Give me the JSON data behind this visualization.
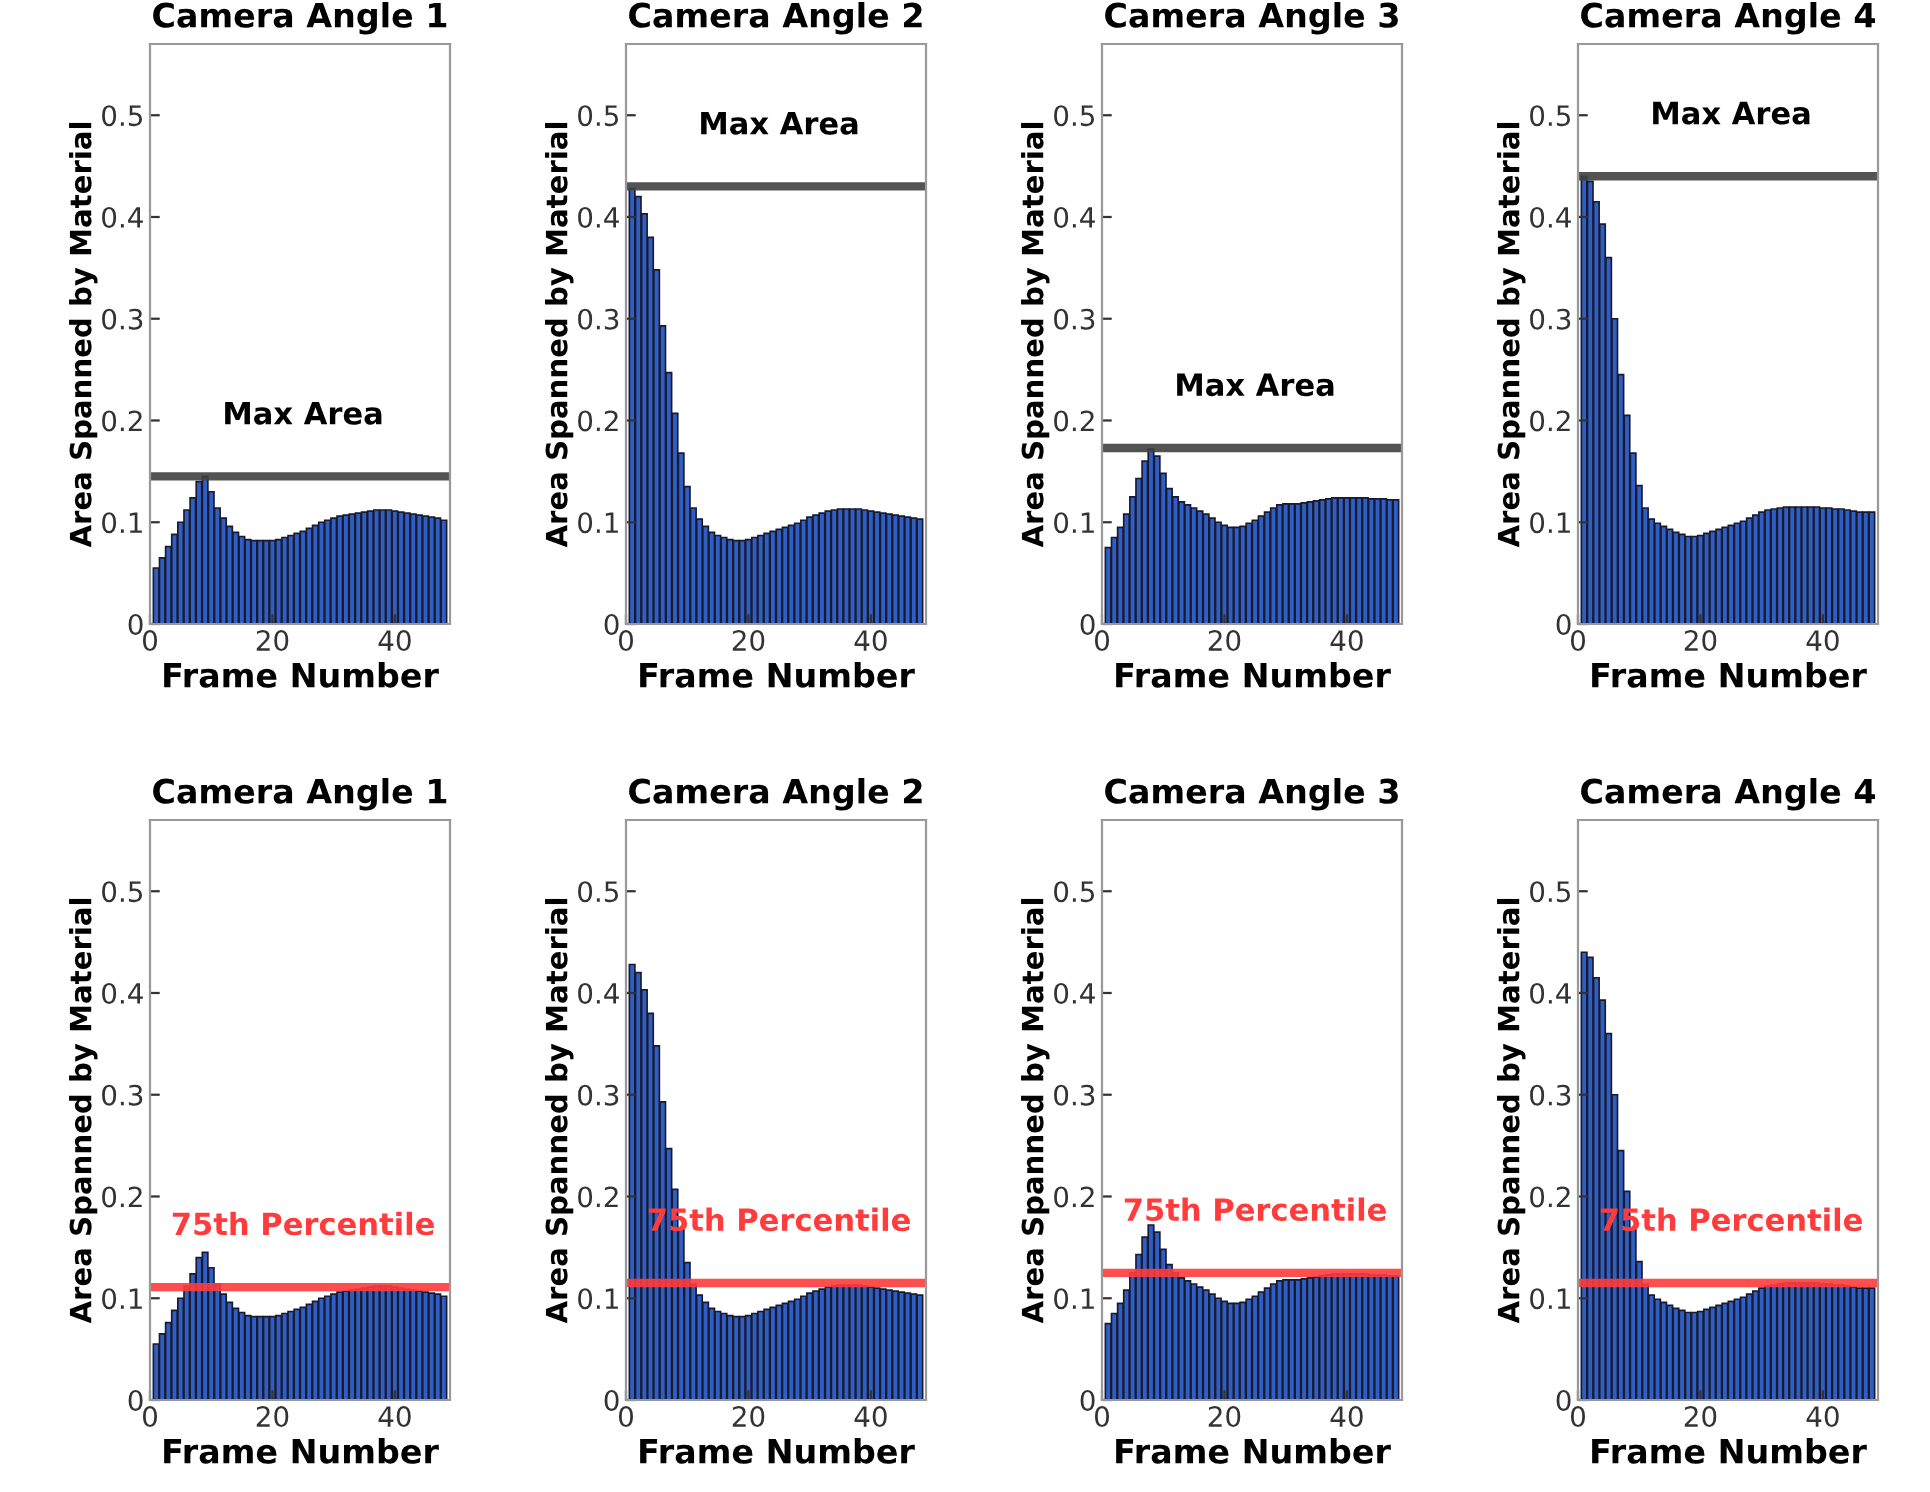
{
  "chart_data": [
    {
      "type": "bar",
      "title": "Camera Angle 1",
      "xlabel": "Frame Number",
      "ylabel": "Area Spanned by Material",
      "color": "#2f5fc4",
      "xlim": [
        0,
        49
      ],
      "ylim": [
        0,
        0.57
      ],
      "xticks": [
        0,
        20,
        40
      ],
      "yticks": [
        0,
        0.1,
        0.2,
        0.3,
        0.4,
        0.5
      ],
      "grid": false,
      "x": [
        1,
        2,
        3,
        4,
        5,
        6,
        7,
        8,
        9,
        10,
        11,
        12,
        13,
        14,
        15,
        16,
        17,
        18,
        19,
        20,
        21,
        22,
        23,
        24,
        25,
        26,
        27,
        28,
        29,
        30,
        31,
        32,
        33,
        34,
        35,
        36,
        37,
        38,
        39,
        40,
        41,
        42,
        43,
        44,
        45,
        46,
        47,
        48
      ],
      "values": [
        0.055,
        0.065,
        0.076,
        0.088,
        0.1,
        0.112,
        0.124,
        0.14,
        0.145,
        0.13,
        0.114,
        0.104,
        0.096,
        0.09,
        0.086,
        0.083,
        0.082,
        0.082,
        0.082,
        0.082,
        0.083,
        0.085,
        0.087,
        0.089,
        0.091,
        0.094,
        0.097,
        0.1,
        0.102,
        0.104,
        0.106,
        0.107,
        0.108,
        0.109,
        0.11,
        0.111,
        0.112,
        0.112,
        0.112,
        0.111,
        0.11,
        0.109,
        0.108,
        0.107,
        0.106,
        0.105,
        0.104,
        0.102
      ],
      "ref_lines": [
        {
          "axis": "y",
          "value": 0.145,
          "label": "Max Area",
          "color": "#404040"
        }
      ]
    },
    {
      "type": "bar",
      "title": "Camera Angle 2",
      "xlabel": "Frame Number",
      "ylabel": "Area Spanned by Material",
      "color": "#2f5fc4",
      "xlim": [
        0,
        49
      ],
      "ylim": [
        0,
        0.57
      ],
      "xticks": [
        0,
        20,
        40
      ],
      "yticks": [
        0,
        0.1,
        0.2,
        0.3,
        0.4,
        0.5
      ],
      "grid": false,
      "x": [
        1,
        2,
        3,
        4,
        5,
        6,
        7,
        8,
        9,
        10,
        11,
        12,
        13,
        14,
        15,
        16,
        17,
        18,
        19,
        20,
        21,
        22,
        23,
        24,
        25,
        26,
        27,
        28,
        29,
        30,
        31,
        32,
        33,
        34,
        35,
        36,
        37,
        38,
        39,
        40,
        41,
        42,
        43,
        44,
        45,
        46,
        47,
        48
      ],
      "values": [
        0.428,
        0.42,
        0.403,
        0.38,
        0.348,
        0.293,
        0.247,
        0.207,
        0.168,
        0.135,
        0.114,
        0.103,
        0.096,
        0.09,
        0.087,
        0.085,
        0.083,
        0.082,
        0.082,
        0.083,
        0.085,
        0.087,
        0.089,
        0.091,
        0.093,
        0.095,
        0.097,
        0.099,
        0.102,
        0.105,
        0.107,
        0.109,
        0.111,
        0.112,
        0.113,
        0.113,
        0.113,
        0.113,
        0.112,
        0.111,
        0.11,
        0.109,
        0.108,
        0.107,
        0.106,
        0.105,
        0.104,
        0.103
      ],
      "ref_lines": [
        {
          "axis": "y",
          "value": 0.43,
          "label": "Max Area",
          "color": "#404040"
        }
      ]
    },
    {
      "type": "bar",
      "title": "Camera Angle 3",
      "xlabel": "Frame Number",
      "ylabel": "Area Spanned by Material",
      "color": "#2f5fc4",
      "xlim": [
        0,
        49
      ],
      "ylim": [
        0,
        0.57
      ],
      "xticks": [
        0,
        20,
        40
      ],
      "yticks": [
        0,
        0.1,
        0.2,
        0.3,
        0.4,
        0.5
      ],
      "grid": false,
      "x": [
        1,
        2,
        3,
        4,
        5,
        6,
        7,
        8,
        9,
        10,
        11,
        12,
        13,
        14,
        15,
        16,
        17,
        18,
        19,
        20,
        21,
        22,
        23,
        24,
        25,
        26,
        27,
        28,
        29,
        30,
        31,
        32,
        33,
        34,
        35,
        36,
        37,
        38,
        39,
        40,
        41,
        42,
        43,
        44,
        45,
        46,
        47,
        48
      ],
      "values": [
        0.075,
        0.085,
        0.095,
        0.108,
        0.125,
        0.143,
        0.16,
        0.172,
        0.165,
        0.148,
        0.133,
        0.125,
        0.12,
        0.117,
        0.114,
        0.111,
        0.108,
        0.104,
        0.1,
        0.097,
        0.095,
        0.095,
        0.096,
        0.099,
        0.102,
        0.106,
        0.11,
        0.114,
        0.117,
        0.118,
        0.118,
        0.118,
        0.119,
        0.12,
        0.121,
        0.122,
        0.123,
        0.124,
        0.124,
        0.124,
        0.124,
        0.124,
        0.124,
        0.123,
        0.123,
        0.123,
        0.122,
        0.122
      ],
      "ref_lines": [
        {
          "axis": "y",
          "value": 0.173,
          "label": "Max Area",
          "color": "#404040"
        }
      ]
    },
    {
      "type": "bar",
      "title": "Camera Angle 4",
      "xlabel": "Frame Number",
      "ylabel": "Area Spanned by Material",
      "color": "#2f5fc4",
      "xlim": [
        0,
        49
      ],
      "ylim": [
        0,
        0.57
      ],
      "xticks": [
        0,
        20,
        40
      ],
      "yticks": [
        0,
        0.1,
        0.2,
        0.3,
        0.4,
        0.5
      ],
      "grid": false,
      "x": [
        1,
        2,
        3,
        4,
        5,
        6,
        7,
        8,
        9,
        10,
        11,
        12,
        13,
        14,
        15,
        16,
        17,
        18,
        19,
        20,
        21,
        22,
        23,
        24,
        25,
        26,
        27,
        28,
        29,
        30,
        31,
        32,
        33,
        34,
        35,
        36,
        37,
        38,
        39,
        40,
        41,
        42,
        43,
        44,
        45,
        46,
        47,
        48
      ],
      "values": [
        0.44,
        0.435,
        0.415,
        0.393,
        0.36,
        0.3,
        0.245,
        0.205,
        0.168,
        0.136,
        0.114,
        0.103,
        0.099,
        0.096,
        0.093,
        0.09,
        0.088,
        0.086,
        0.086,
        0.087,
        0.089,
        0.091,
        0.093,
        0.095,
        0.097,
        0.099,
        0.101,
        0.104,
        0.107,
        0.11,
        0.112,
        0.113,
        0.114,
        0.115,
        0.115,
        0.115,
        0.115,
        0.115,
        0.115,
        0.114,
        0.114,
        0.113,
        0.113,
        0.112,
        0.111,
        0.11,
        0.11,
        0.11
      ],
      "ref_lines": [
        {
          "axis": "y",
          "value": 0.44,
          "label": "Max Area",
          "color": "#404040"
        }
      ]
    },
    {
      "type": "bar",
      "title": "Camera Angle 1",
      "xlabel": "Frame Number",
      "ylabel": "Area Spanned by Material",
      "color": "#2f5fc4",
      "xlim": [
        0,
        49
      ],
      "ylim": [
        0,
        0.57
      ],
      "xticks": [
        0,
        20,
        40
      ],
      "yticks": [
        0,
        0.1,
        0.2,
        0.3,
        0.4,
        0.5
      ],
      "grid": false,
      "x": [
        1,
        2,
        3,
        4,
        5,
        6,
        7,
        8,
        9,
        10,
        11,
        12,
        13,
        14,
        15,
        16,
        17,
        18,
        19,
        20,
        21,
        22,
        23,
        24,
        25,
        26,
        27,
        28,
        29,
        30,
        31,
        32,
        33,
        34,
        35,
        36,
        37,
        38,
        39,
        40,
        41,
        42,
        43,
        44,
        45,
        46,
        47,
        48
      ],
      "values": [
        0.055,
        0.065,
        0.076,
        0.088,
        0.1,
        0.112,
        0.124,
        0.14,
        0.145,
        0.13,
        0.114,
        0.104,
        0.096,
        0.09,
        0.086,
        0.083,
        0.082,
        0.082,
        0.082,
        0.082,
        0.083,
        0.085,
        0.087,
        0.089,
        0.091,
        0.094,
        0.097,
        0.1,
        0.102,
        0.104,
        0.106,
        0.107,
        0.108,
        0.109,
        0.11,
        0.111,
        0.112,
        0.112,
        0.112,
        0.111,
        0.11,
        0.109,
        0.108,
        0.107,
        0.106,
        0.105,
        0.104,
        0.102
      ],
      "ref_lines": [
        {
          "axis": "y",
          "value": 0.111,
          "label": "75th Percentile",
          "color": "#ff3b3b"
        }
      ]
    },
    {
      "type": "bar",
      "title": "Camera Angle 2",
      "xlabel": "Frame Number",
      "ylabel": "Area Spanned by Material",
      "color": "#2f5fc4",
      "xlim": [
        0,
        49
      ],
      "ylim": [
        0,
        0.57
      ],
      "xticks": [
        0,
        20,
        40
      ],
      "yticks": [
        0,
        0.1,
        0.2,
        0.3,
        0.4,
        0.5
      ],
      "grid": false,
      "x": [
        1,
        2,
        3,
        4,
        5,
        6,
        7,
        8,
        9,
        10,
        11,
        12,
        13,
        14,
        15,
        16,
        17,
        18,
        19,
        20,
        21,
        22,
        23,
        24,
        25,
        26,
        27,
        28,
        29,
        30,
        31,
        32,
        33,
        34,
        35,
        36,
        37,
        38,
        39,
        40,
        41,
        42,
        43,
        44,
        45,
        46,
        47,
        48
      ],
      "values": [
        0.428,
        0.42,
        0.403,
        0.38,
        0.348,
        0.293,
        0.247,
        0.207,
        0.168,
        0.135,
        0.114,
        0.103,
        0.096,
        0.09,
        0.087,
        0.085,
        0.083,
        0.082,
        0.082,
        0.083,
        0.085,
        0.087,
        0.089,
        0.091,
        0.093,
        0.095,
        0.097,
        0.099,
        0.102,
        0.105,
        0.107,
        0.109,
        0.111,
        0.112,
        0.113,
        0.113,
        0.113,
        0.113,
        0.112,
        0.111,
        0.11,
        0.109,
        0.108,
        0.107,
        0.106,
        0.105,
        0.104,
        0.103
      ],
      "ref_lines": [
        {
          "axis": "y",
          "value": 0.115,
          "label": "75th Percentile",
          "color": "#ff3b3b"
        }
      ]
    },
    {
      "type": "bar",
      "title": "Camera Angle 3",
      "xlabel": "Frame Number",
      "ylabel": "Area Spanned by Material",
      "color": "#2f5fc4",
      "xlim": [
        0,
        49
      ],
      "ylim": [
        0,
        0.57
      ],
      "xticks": [
        0,
        20,
        40
      ],
      "yticks": [
        0,
        0.1,
        0.2,
        0.3,
        0.4,
        0.5
      ],
      "grid": false,
      "x": [
        1,
        2,
        3,
        4,
        5,
        6,
        7,
        8,
        9,
        10,
        11,
        12,
        13,
        14,
        15,
        16,
        17,
        18,
        19,
        20,
        21,
        22,
        23,
        24,
        25,
        26,
        27,
        28,
        29,
        30,
        31,
        32,
        33,
        34,
        35,
        36,
        37,
        38,
        39,
        40,
        41,
        42,
        43,
        44,
        45,
        46,
        47,
        48
      ],
      "values": [
        0.075,
        0.085,
        0.095,
        0.108,
        0.125,
        0.143,
        0.16,
        0.172,
        0.165,
        0.148,
        0.133,
        0.125,
        0.12,
        0.117,
        0.114,
        0.111,
        0.108,
        0.104,
        0.1,
        0.097,
        0.095,
        0.095,
        0.096,
        0.099,
        0.102,
        0.106,
        0.11,
        0.114,
        0.117,
        0.118,
        0.118,
        0.118,
        0.119,
        0.12,
        0.121,
        0.122,
        0.123,
        0.124,
        0.124,
        0.124,
        0.124,
        0.124,
        0.124,
        0.123,
        0.123,
        0.123,
        0.122,
        0.122
      ],
      "ref_lines": [
        {
          "axis": "y",
          "value": 0.125,
          "label": "75th Percentile",
          "color": "#ff3b3b"
        }
      ]
    },
    {
      "type": "bar",
      "title": "Camera Angle 4",
      "xlabel": "Frame Number",
      "ylabel": "Area Spanned by Material",
      "color": "#2f5fc4",
      "xlim": [
        0,
        49
      ],
      "ylim": [
        0,
        0.57
      ],
      "xticks": [
        0,
        20,
        40
      ],
      "yticks": [
        0,
        0.1,
        0.2,
        0.3,
        0.4,
        0.5
      ],
      "grid": false,
      "x": [
        1,
        2,
        3,
        4,
        5,
        6,
        7,
        8,
        9,
        10,
        11,
        12,
        13,
        14,
        15,
        16,
        17,
        18,
        19,
        20,
        21,
        22,
        23,
        24,
        25,
        26,
        27,
        28,
        29,
        30,
        31,
        32,
        33,
        34,
        35,
        36,
        37,
        38,
        39,
        40,
        41,
        42,
        43,
        44,
        45,
        46,
        47,
        48
      ],
      "values": [
        0.44,
        0.435,
        0.415,
        0.393,
        0.36,
        0.3,
        0.245,
        0.205,
        0.168,
        0.136,
        0.114,
        0.103,
        0.099,
        0.096,
        0.093,
        0.09,
        0.088,
        0.086,
        0.086,
        0.087,
        0.089,
        0.091,
        0.093,
        0.095,
        0.097,
        0.099,
        0.101,
        0.104,
        0.107,
        0.11,
        0.112,
        0.113,
        0.114,
        0.115,
        0.115,
        0.115,
        0.115,
        0.115,
        0.115,
        0.114,
        0.114,
        0.113,
        0.113,
        0.112,
        0.111,
        0.11,
        0.11,
        0.11
      ],
      "ref_lines": [
        {
          "axis": "y",
          "value": 0.115,
          "label": "75th Percentile",
          "color": "#ff3b3b"
        }
      ]
    }
  ]
}
